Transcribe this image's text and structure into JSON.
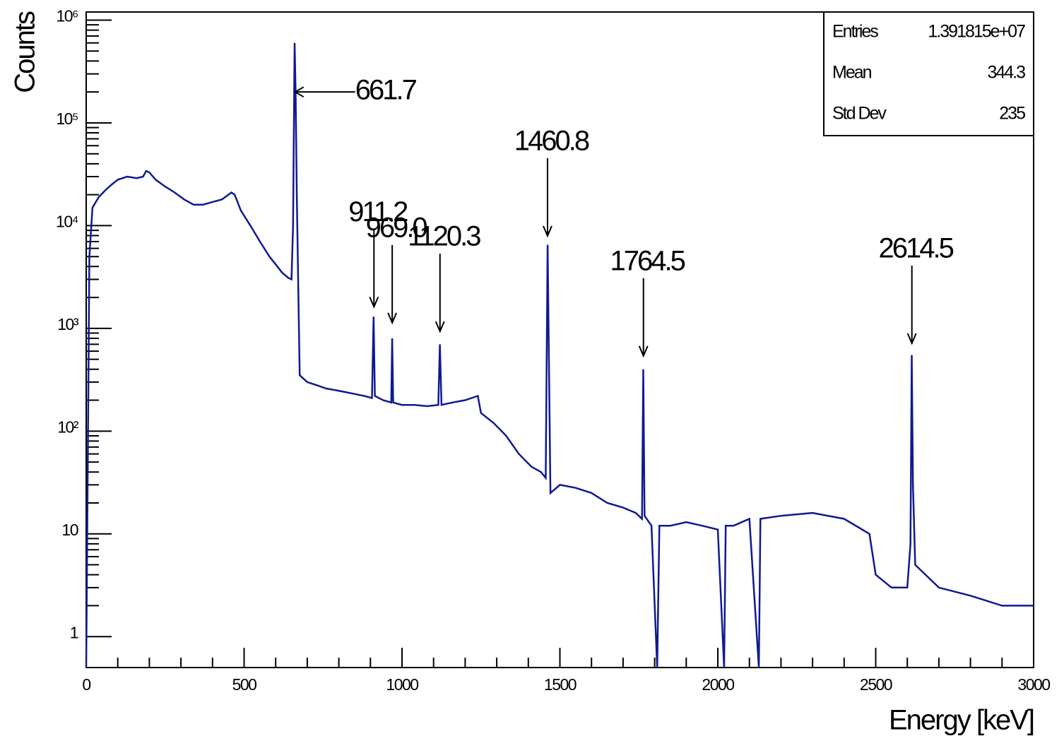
{
  "chart_data": {
    "type": "line",
    "color": "#101a8f",
    "log_y": true,
    "x_label": "Energy [keV]",
    "y_label": "Counts",
    "xlim": [
      0,
      3000
    ],
    "xticks": [
      0,
      500,
      1000,
      1500,
      2000,
      2500,
      3000
    ],
    "ylim": [
      0.5,
      1200000
    ],
    "yticks": [
      1,
      10,
      {
        "value": 100,
        "label": "10²"
      },
      {
        "value": 1000,
        "label": "10³"
      },
      {
        "value": 10000,
        "label": "10⁴"
      },
      {
        "value": 100000,
        "label": "10⁵"
      },
      {
        "value": 1000000,
        "label": "10⁶"
      }
    ],
    "stats": [
      {
        "name": "Entries",
        "value": "1.391815e+07"
      },
      {
        "name": "Mean",
        "value": "344.3"
      },
      {
        "name": "Std Dev",
        "value": "235"
      }
    ],
    "annotations": [
      {
        "label": "661.7",
        "x": 661.7,
        "y": 200000,
        "arrow": "left"
      },
      {
        "label": "911.2",
        "x": 911.2,
        "y": 1620,
        "arrow": "down"
      },
      {
        "label": "969.0",
        "x": 969.0,
        "y": 1135,
        "arrow": "down"
      },
      {
        "label": "1120.3",
        "x": 1120.3,
        "y": 935,
        "arrow": "down"
      },
      {
        "label": "1460.8",
        "x": 1460.8,
        "y": 7950,
        "arrow": "down"
      },
      {
        "label": "1764.5",
        "x": 1764.5,
        "y": 540,
        "arrow": "down"
      },
      {
        "label": "2614.5",
        "x": 2614.5,
        "y": 716,
        "arrow": "down"
      }
    ],
    "x": [
      0,
      10,
      20,
      40,
      60,
      80,
      100,
      130,
      160,
      180,
      190,
      200,
      220,
      250,
      280,
      310,
      340,
      370,
      400,
      430,
      460,
      470,
      490,
      520,
      550,
      580,
      600,
      620,
      640,
      650,
      655,
      660,
      663,
      667,
      672,
      676,
      700,
      730,
      760,
      790,
      820,
      850,
      880,
      905,
      910,
      914,
      940,
      966,
      969,
      972,
      1000,
      1040,
      1080,
      1115,
      1120,
      1125,
      1160,
      1200,
      1240,
      1250,
      1290,
      1330,
      1370,
      1410,
      1440,
      1455,
      1461,
      1466,
      1470,
      1500,
      1550,
      1600,
      1650,
      1700,
      1740,
      1760,
      1764,
      1768,
      1790,
      1808,
      1815,
      1850,
      1900,
      1950,
      2000,
      2020,
      2025,
      2050,
      2100,
      2130,
      2135,
      2200,
      2300,
      2400,
      2480,
      2500,
      2550,
      2600,
      2610,
      2614,
      2618,
      2625,
      2700,
      2800,
      2900,
      3000
    ],
    "values": [
      0.5,
      5000,
      15000,
      19000,
      22000,
      25000,
      28000,
      30000,
      29000,
      30000,
      34000,
      33000,
      28000,
      24000,
      21000,
      18000,
      16000,
      16000,
      17000,
      18000,
      21000,
      20000,
      14000,
      10000,
      7000,
      5000,
      4200,
      3500,
      3100,
      3000,
      10000,
      600000,
      200000,
      20000,
      2000,
      350,
      300,
      280,
      260,
      250,
      240,
      230,
      220,
      210,
      1300,
      220,
      200,
      190,
      800,
      190,
      180,
      180,
      175,
      180,
      700,
      180,
      190,
      200,
      220,
      150,
      120,
      90,
      60,
      45,
      40,
      35,
      6500,
      300,
      25,
      30,
      28,
      25,
      20,
      18,
      16,
      14,
      400,
      15,
      12,
      0.5,
      12,
      12,
      13,
      12,
      11,
      0.5,
      12,
      12,
      14,
      0.5,
      14,
      15,
      16,
      14,
      10,
      4,
      3,
      3,
      8,
      550,
      30,
      5,
      3,
      2.5,
      2,
      2
    ]
  }
}
